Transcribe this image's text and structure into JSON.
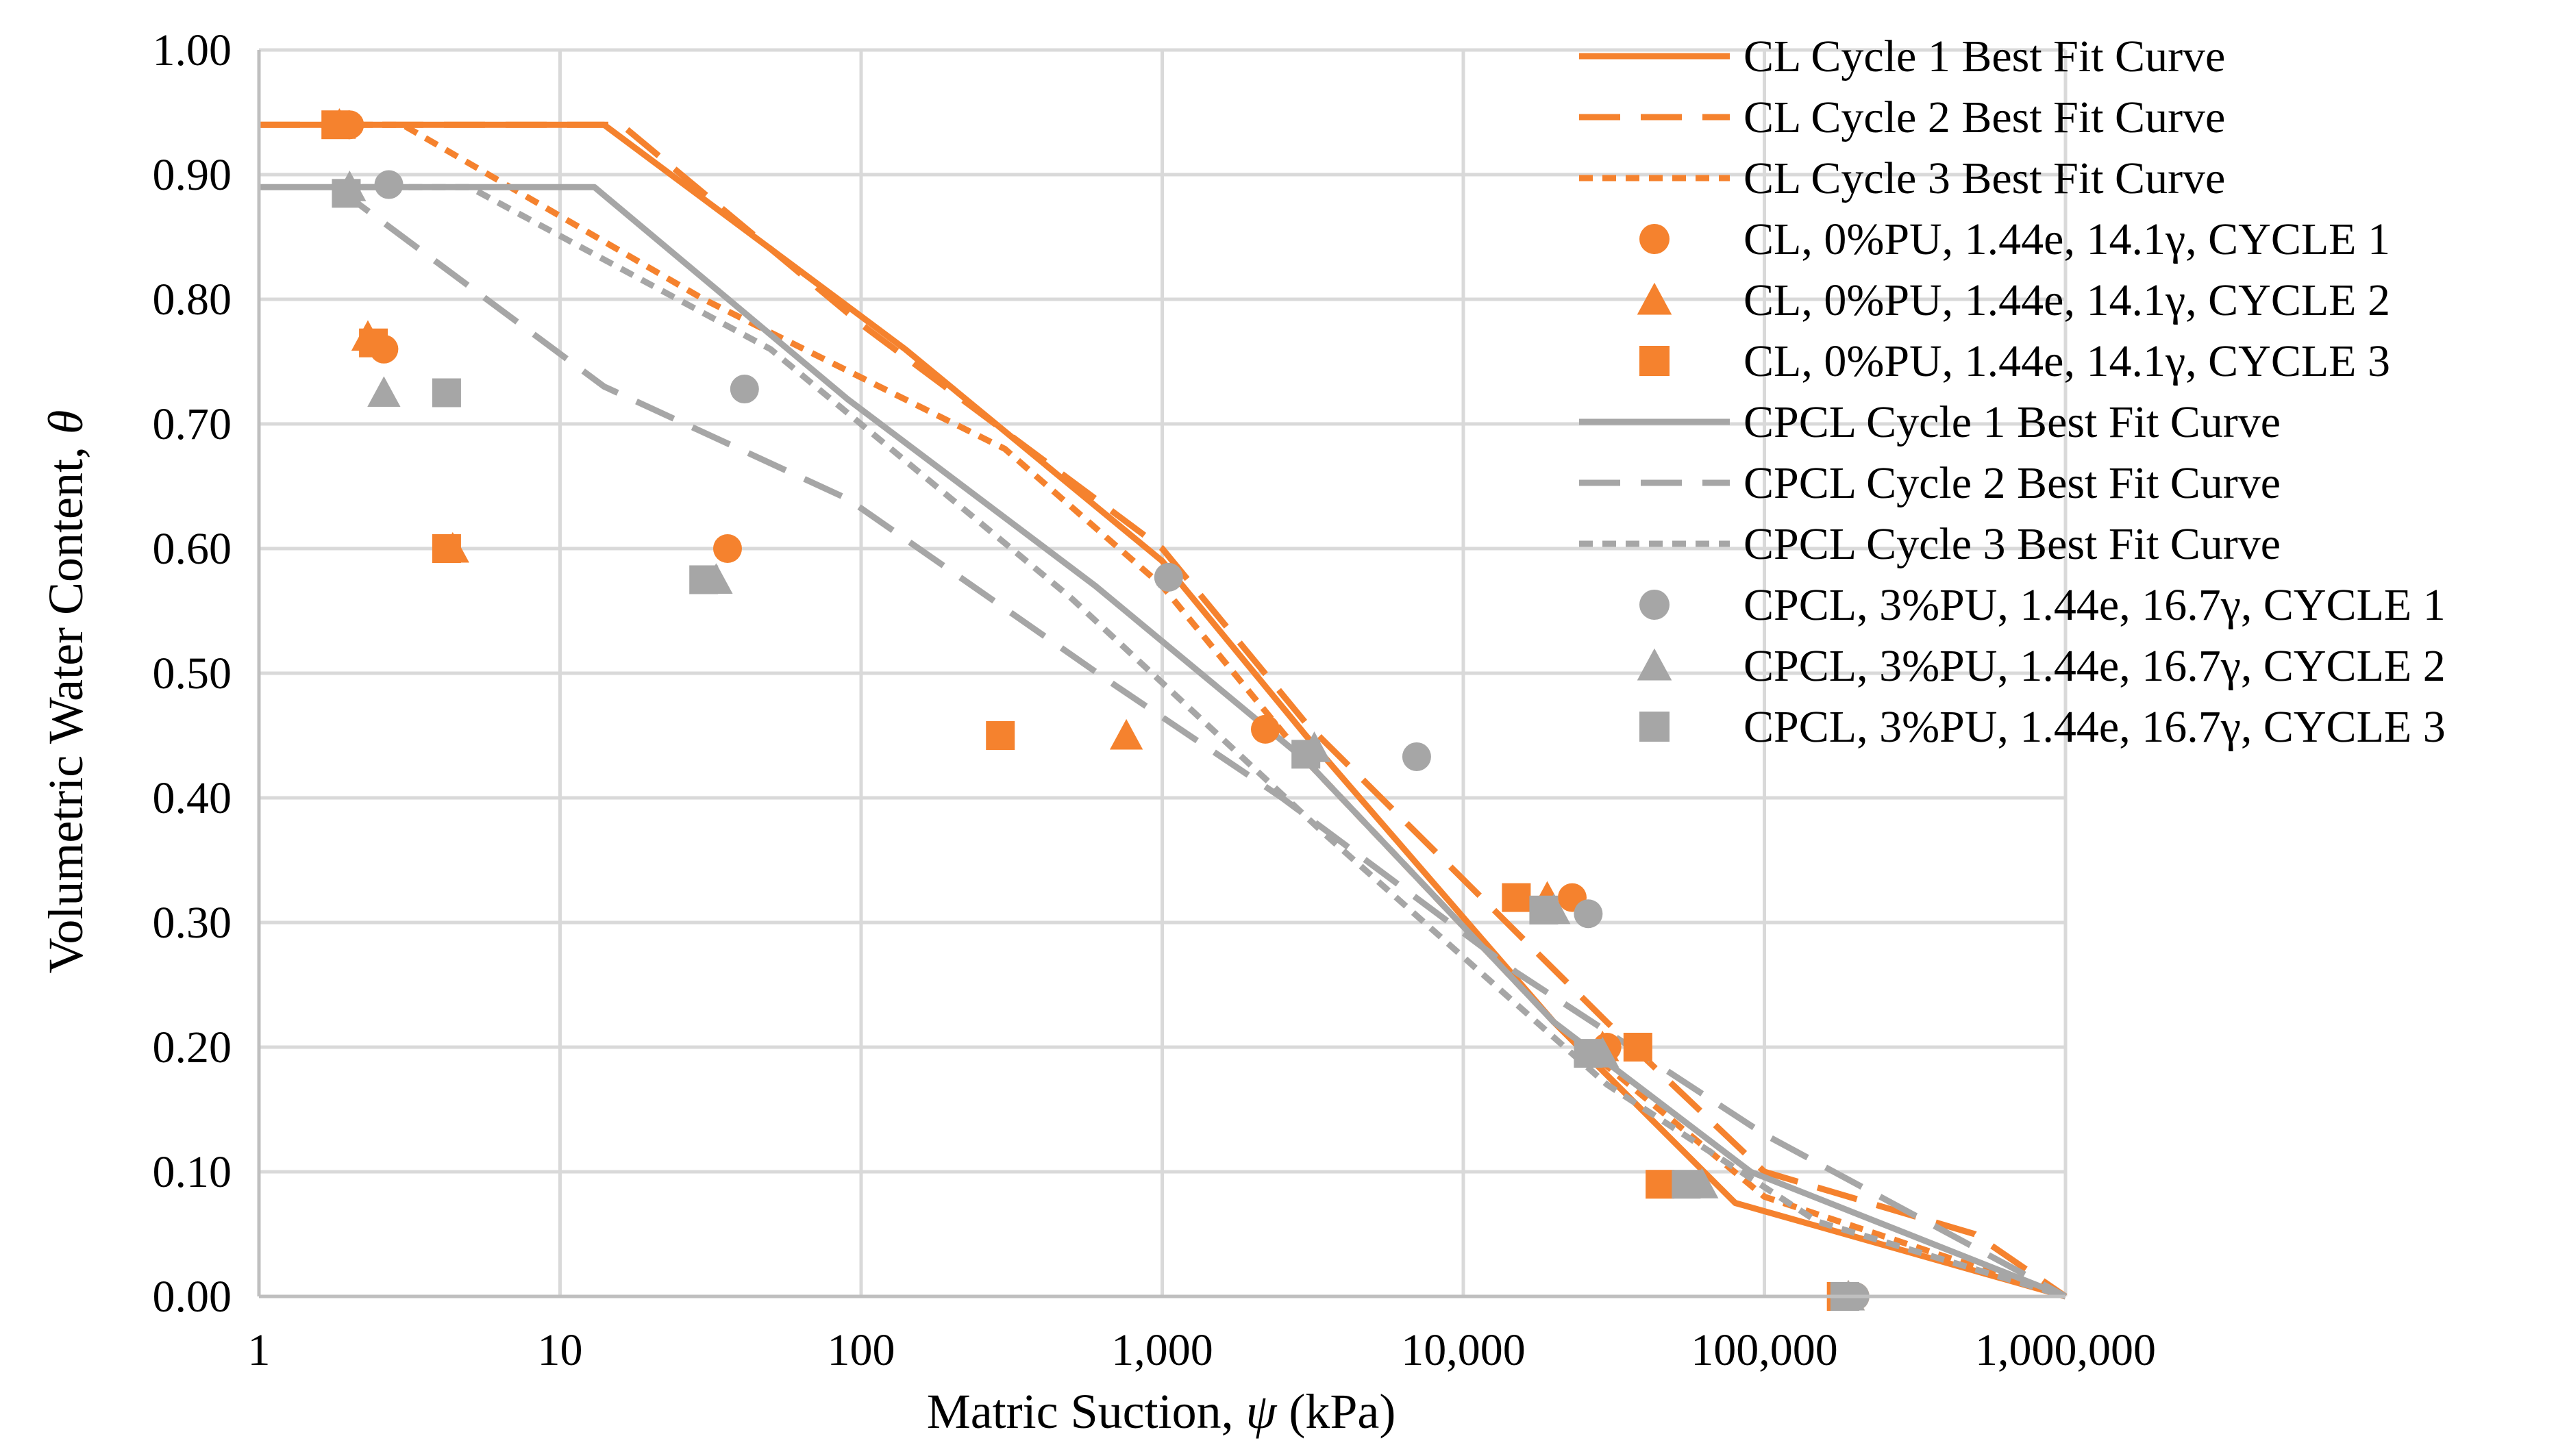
{
  "colors": {
    "cl": "#F5822E",
    "cpcl": "#A6A6A6",
    "grid": "#D9D9D9",
    "axis": "#BFBFBF"
  },
  "chart_data": {
    "type": "scatter",
    "title": "",
    "xlabel_pre": "Matric Suction, ",
    "xlabel_sym": "ψ",
    "xlabel_post": " (kPa)",
    "ylabel_pre": "Volumetric Water Content, ",
    "ylabel_sym": "θ",
    "xscale": "log",
    "xlim": [
      1,
      1000000
    ],
    "ylim": [
      0,
      1
    ],
    "grid": true,
    "legend_position": "right",
    "xticks": [
      {
        "value": 1,
        "label": "1"
      },
      {
        "value": 10,
        "label": "10"
      },
      {
        "value": 100,
        "label": "100"
      },
      {
        "value": 1000,
        "label": "1,000"
      },
      {
        "value": 10000,
        "label": "10,000"
      },
      {
        "value": 100000,
        "label": "100,000"
      },
      {
        "value": 1000000,
        "label": "1,000,000"
      }
    ],
    "yticks": [
      {
        "value": 0,
        "label": "0.00"
      },
      {
        "value": 0.1,
        "label": "0.10"
      },
      {
        "value": 0.2,
        "label": "0.20"
      },
      {
        "value": 0.3,
        "label": "0.30"
      },
      {
        "value": 0.4,
        "label": "0.40"
      },
      {
        "value": 0.5,
        "label": "0.50"
      },
      {
        "value": 0.6,
        "label": "0.60"
      },
      {
        "value": 0.7,
        "label": "0.70"
      },
      {
        "value": 0.8,
        "label": "0.80"
      },
      {
        "value": 0.9,
        "label": "0.90"
      },
      {
        "value": 1,
        "label": "1.00"
      }
    ],
    "series": [
      {
        "name": "CL Cycle 1 Best Fit Curve",
        "kind": "line",
        "dash": "solid",
        "color": "cl",
        "points": [
          [
            1,
            0.94
          ],
          [
            14,
            0.94
          ],
          [
            140,
            0.76
          ],
          [
            1000,
            0.59
          ],
          [
            3000,
            0.45
          ],
          [
            20000,
            0.22
          ],
          [
            80000,
            0.075
          ],
          [
            1000000,
            0.0
          ]
        ]
      },
      {
        "name": "CL Cycle 2 Best Fit Curve",
        "kind": "line",
        "dash": "long",
        "color": "cl",
        "points": [
          [
            1,
            0.94
          ],
          [
            16,
            0.94
          ],
          [
            100,
            0.78
          ],
          [
            1000,
            0.6
          ],
          [
            3000,
            0.46
          ],
          [
            30000,
            0.22
          ],
          [
            100000,
            0.1
          ],
          [
            500000,
            0.05
          ],
          [
            1000000,
            0.0
          ]
        ]
      },
      {
        "name": "CL Cycle 3 Best Fit Curve",
        "kind": "line",
        "dash": "short",
        "color": "cl",
        "points": [
          [
            1.8,
            0.94
          ],
          [
            3,
            0.94
          ],
          [
            30,
            0.8
          ],
          [
            300,
            0.68
          ],
          [
            1000,
            0.57
          ],
          [
            3000,
            0.43
          ],
          [
            20000,
            0.22
          ],
          [
            100000,
            0.08
          ],
          [
            1000000,
            0.0
          ]
        ]
      },
      {
        "name": "CL, 0%PU, 1.44e, 14.1γ, CYCLE 1",
        "kind": "marker",
        "shape": "circle",
        "color": "cl",
        "points": [
          [
            2.0,
            0.94
          ],
          [
            2.6,
            0.76
          ],
          [
            36,
            0.6
          ],
          [
            2200,
            0.455
          ],
          [
            23000,
            0.32
          ],
          [
            30000,
            0.2
          ],
          [
            200000,
            0.0
          ]
        ]
      },
      {
        "name": "CL, 0%PU, 1.44e, 14.1γ, CYCLE 2",
        "kind": "marker",
        "shape": "triangle",
        "color": "cl",
        "points": [
          [
            1.85,
            0.94
          ],
          [
            2.3,
            0.77
          ],
          [
            4.4,
            0.6
          ],
          [
            760,
            0.45
          ],
          [
            19000,
            0.32
          ],
          [
            29000,
            0.2
          ],
          [
            190000,
            0.0
          ]
        ]
      },
      {
        "name": "CL, 0%PU, 1.44e, 14.1γ, CYCLE 3",
        "kind": "marker",
        "shape": "square",
        "color": "cl",
        "points": [
          [
            1.8,
            0.94
          ],
          [
            2.4,
            0.765
          ],
          [
            4.2,
            0.6
          ],
          [
            290,
            0.45
          ],
          [
            15000,
            0.32
          ],
          [
            38000,
            0.2
          ],
          [
            45000,
            0.09
          ],
          [
            180000,
            0.0
          ]
        ]
      },
      {
        "name": "CPCL Cycle 1 Best Fit Curve",
        "kind": "line",
        "dash": "solid",
        "color": "cpcl",
        "points": [
          [
            1,
            0.89
          ],
          [
            13,
            0.89
          ],
          [
            90,
            0.72
          ],
          [
            600,
            0.57
          ],
          [
            3000,
            0.43
          ],
          [
            20000,
            0.22
          ],
          [
            90000,
            0.1
          ],
          [
            1000000,
            0.0
          ]
        ]
      },
      {
        "name": "CPCL Cycle 2 Best Fit Curve",
        "kind": "line",
        "dash": "long",
        "color": "cpcl",
        "points": [
          [
            1.8,
            0.89
          ],
          [
            14,
            0.73
          ],
          [
            90,
            0.64
          ],
          [
            700,
            0.49
          ],
          [
            2500,
            0.4
          ],
          [
            15000,
            0.26
          ],
          [
            100000,
            0.13
          ],
          [
            1000000,
            0.0
          ]
        ]
      },
      {
        "name": "CPCL Cycle 3 Best Fit Curve",
        "kind": "line",
        "dash": "short",
        "color": "cpcl",
        "points": [
          [
            2.2,
            0.89
          ],
          [
            5,
            0.89
          ],
          [
            50,
            0.76
          ],
          [
            500,
            0.56
          ],
          [
            3500,
            0.37
          ],
          [
            30000,
            0.17
          ],
          [
            150000,
            0.06
          ],
          [
            1000000,
            0.0
          ]
        ]
      },
      {
        "name": "CPCL, 3%PU, 1.44e, 16.7γ, CYCLE 1",
        "kind": "marker",
        "shape": "circle",
        "color": "cpcl",
        "points": [
          [
            2.7,
            0.892
          ],
          [
            41,
            0.728
          ],
          [
            1050,
            0.577
          ],
          [
            7000,
            0.433
          ],
          [
            26000,
            0.307
          ],
          [
            200000,
            0.0
          ]
        ]
      },
      {
        "name": "CPCL, 3%PU, 1.44e, 16.7γ, CYCLE 2",
        "kind": "marker",
        "shape": "triangle",
        "color": "cpcl",
        "points": [
          [
            2.0,
            0.89
          ],
          [
            2.6,
            0.725
          ],
          [
            33,
            0.575
          ],
          [
            3200,
            0.44
          ],
          [
            20000,
            0.31
          ],
          [
            29000,
            0.195
          ],
          [
            62000,
            0.09
          ],
          [
            190000,
            0.0
          ]
        ]
      },
      {
        "name": "CPCL, 3%PU, 1.44e, 16.7γ, CYCLE 3",
        "kind": "marker",
        "shape": "square",
        "color": "cpcl",
        "points": [
          [
            1.95,
            0.885
          ],
          [
            4.2,
            0.725
          ],
          [
            30,
            0.575
          ],
          [
            3000,
            0.435
          ],
          [
            18500,
            0.31
          ],
          [
            26000,
            0.195
          ],
          [
            55000,
            0.09
          ],
          [
            185000,
            0.0
          ]
        ]
      }
    ]
  }
}
